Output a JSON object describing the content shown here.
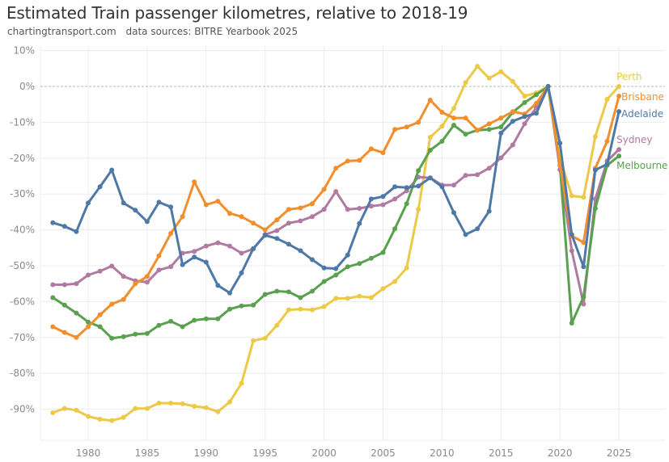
{
  "header": {
    "title": "Estimated Train passenger kilometres, relative to 2018-19",
    "source_site": "chartingtransport.com",
    "source_note": "data sources: BITRE Yearbook 2025"
  },
  "chart_data": {
    "type": "line",
    "title": "Estimated Train passenger kilometres, relative to 2018-19",
    "xlabel": "",
    "ylabel": "",
    "xlim": [
      1976,
      2029
    ],
    "ylim": [
      -99,
      12
    ],
    "x_ticks": [
      1980,
      1985,
      1990,
      1995,
      2000,
      2005,
      2010,
      2015,
      2020,
      2025
    ],
    "y_ticks": [
      10,
      0,
      -10,
      -20,
      -30,
      -40,
      -50,
      -60,
      -70,
      -80,
      -90
    ],
    "y_tick_format": "percent",
    "reference_line": {
      "y": 0,
      "style": "dashed"
    },
    "grid": true,
    "legend": "inline-right",
    "x": [
      1977,
      1978,
      1979,
      1980,
      1981,
      1982,
      1983,
      1984,
      1985,
      1986,
      1987,
      1988,
      1989,
      1990,
      1991,
      1992,
      1993,
      1994,
      1995,
      1996,
      1997,
      1998,
      1999,
      2000,
      2001,
      2002,
      2003,
      2004,
      2005,
      2006,
      2007,
      2008,
      2009,
      2010,
      2011,
      2012,
      2013,
      2014,
      2015,
      2016,
      2017,
      2018,
      2019,
      2020,
      2021,
      2022,
      2023,
      2024,
      2025
    ],
    "series": [
      {
        "name": "Perth",
        "color": "#edc948",
        "values": [
          -91,
          -89.8,
          -90.3,
          -92,
          -92.8,
          -93.2,
          -92.3,
          -89.8,
          -89.8,
          -88.3,
          -88.3,
          -88.5,
          -89.2,
          -89.6,
          -90.7,
          -88,
          -82.8,
          -70.9,
          -70.2,
          -66.6,
          -62.3,
          -62.1,
          -62.3,
          -61.4,
          -59.1,
          -59.1,
          -58.5,
          -58.9,
          -56.4,
          -54.4,
          -50.6,
          -34.3,
          -14.2,
          -11.1,
          -6.1,
          1.1,
          5.6,
          2.3,
          4.1,
          1.4,
          -2.7,
          -1.8,
          0,
          -19.9,
          -30.5,
          -30.9,
          -14,
          -3.6,
          0
        ]
      },
      {
        "name": "Brisbane",
        "color": "#f28e2b",
        "values": [
          -67,
          -68.6,
          -70,
          -67,
          -63.7,
          -60.7,
          -59.4,
          -55,
          -53,
          -47.2,
          -41,
          -36.3,
          -26.6,
          -33,
          -32,
          -35.4,
          -36.3,
          -38.1,
          -40,
          -37.2,
          -34.3,
          -33.9,
          -32.7,
          -28.7,
          -22.8,
          -20.8,
          -20.6,
          -17.4,
          -18.5,
          -12,
          -11.3,
          -10,
          -3.8,
          -7.2,
          -8.8,
          -8.8,
          -12.2,
          -10.4,
          -8.8,
          -7,
          -7.7,
          -4.7,
          0,
          -22,
          -41.7,
          -43.5,
          -22.8,
          -15.3,
          -2.7
        ]
      },
      {
        "name": "Adelaide",
        "color": "#4e79a7",
        "values": [
          -38,
          -39,
          -40.5,
          -32.5,
          -28,
          -23.3,
          -32.5,
          -34.5,
          -37.7,
          -32.3,
          -33.6,
          -49.7,
          -47.6,
          -49,
          -55.5,
          -57.6,
          -52,
          -45.2,
          -41.5,
          -42.4,
          -44,
          -45.8,
          -48.3,
          -50.6,
          -50.8,
          -47,
          -38.2,
          -31.4,
          -30.7,
          -28,
          -28.2,
          -27.8,
          -25.5,
          -28,
          -35.2,
          -41.3,
          -39.7,
          -34.8,
          -13,
          -9.7,
          -8.4,
          -7.5,
          0,
          -15.8,
          -41.3,
          -50.3,
          -23.3,
          -21.7,
          -7
        ]
      },
      {
        "name": "Sydney",
        "color": "#b07aa1",
        "values": [
          -55.3,
          -55.3,
          -55,
          -52.6,
          -51.5,
          -50.1,
          -53,
          -54.2,
          -54.6,
          -51.2,
          -50.3,
          -46.5,
          -46,
          -44.5,
          -43.6,
          -44.5,
          -46.5,
          -45.3,
          -41.3,
          -40.2,
          -38.1,
          -37.5,
          -36.3,
          -34.3,
          -29.3,
          -34.3,
          -34,
          -33.4,
          -33,
          -31.4,
          -29.1,
          -25.3,
          -25.5,
          -27.5,
          -27.5,
          -24.8,
          -24.6,
          -22.8,
          -19.9,
          -16.3,
          -10.4,
          -5.9,
          0,
          -23.2,
          -45.8,
          -60.7,
          -31.4,
          -20.8,
          -17.6
        ]
      },
      {
        "name": "Melbourne",
        "color": "#59a14f",
        "values": [
          -58.9,
          -61,
          -63.2,
          -65.7,
          -67,
          -70.2,
          -69.8,
          -69.1,
          -68.9,
          -66.6,
          -65.5,
          -67,
          -65.2,
          -64.8,
          -64.8,
          -62.1,
          -61.2,
          -61,
          -58,
          -57.1,
          -57.3,
          -58.9,
          -57.1,
          -54.4,
          -52.6,
          -50.3,
          -49.4,
          -47.9,
          -46.3,
          -39.7,
          -32.7,
          -23.5,
          -17.8,
          -15.3,
          -10.8,
          -13.3,
          -12.2,
          -12,
          -11.3,
          -7.2,
          -4.5,
          -2.3,
          0,
          -22,
          -66,
          -58.7,
          -34,
          -22,
          -19.4
        ]
      }
    ]
  }
}
